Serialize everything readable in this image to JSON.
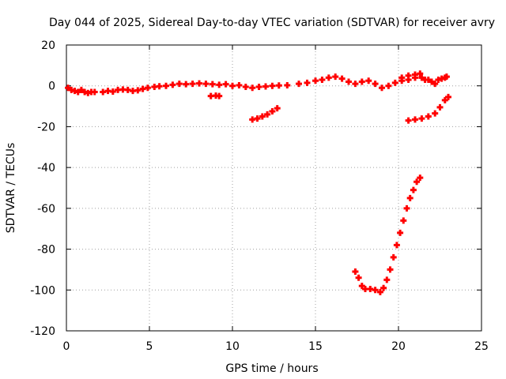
{
  "chart_data": {
    "type": "scatter",
    "title": "Day 044 of 2025, Sidereal Day-to-day VTEC variation (SDTVAR) for receiver avry",
    "xlabel": "GPS time / hours",
    "ylabel": "SDTVAR / TECUs",
    "xlim": [
      0,
      25
    ],
    "ylim": [
      -120,
      20
    ],
    "xticks": [
      "0",
      "5",
      "10",
      "15",
      "20",
      "25"
    ],
    "yticks": [
      "20",
      "0",
      "-20",
      "-40",
      "-60",
      "-80",
      "-100",
      "-120"
    ],
    "grid": true,
    "legend": "none",
    "series": [
      {
        "color": "#ff0000",
        "points": [
          [
            0.1,
            -1
          ],
          [
            0.3,
            -2
          ],
          [
            0.5,
            -2.5
          ],
          [
            0.7,
            -3
          ],
          [
            0.9,
            -2
          ],
          [
            1.1,
            -3
          ],
          [
            1.3,
            -3.5
          ],
          [
            1.5,
            -3
          ],
          [
            1.7,
            -3
          ],
          [
            2.2,
            -3
          ],
          [
            2.5,
            -2.5
          ],
          [
            2.8,
            -2.8
          ],
          [
            3.1,
            -2
          ],
          [
            3.4,
            -1.8
          ],
          [
            3.7,
            -2
          ],
          [
            4.0,
            -2.5
          ],
          [
            4.3,
            -2.2
          ],
          [
            4.6,
            -1.5
          ],
          [
            4.9,
            -1
          ],
          [
            5.3,
            -0.5
          ],
          [
            5.6,
            -0.2
          ],
          [
            6.0,
            0
          ],
          [
            6.4,
            0.5
          ],
          [
            6.8,
            1
          ],
          [
            7.2,
            0.8
          ],
          [
            7.6,
            1
          ],
          [
            8.0,
            1.2
          ],
          [
            8.4,
            1
          ],
          [
            8.8,
            0.8
          ],
          [
            9.2,
            0.5
          ],
          [
            9.6,
            0.8
          ],
          [
            10.0,
            0
          ],
          [
            10.4,
            0.3
          ],
          [
            10.8,
            -0.5
          ],
          [
            11.2,
            -1
          ],
          [
            11.6,
            -0.5
          ],
          [
            12.0,
            -0.3
          ],
          [
            12.4,
            0
          ],
          [
            12.8,
            0.2
          ],
          [
            13.3,
            0.3
          ],
          [
            14.0,
            1
          ],
          [
            14.5,
            1.5
          ],
          [
            15.0,
            2.5
          ],
          [
            15.4,
            3
          ],
          [
            15.8,
            4
          ],
          [
            16.2,
            4.5
          ],
          [
            16.6,
            3.5
          ],
          [
            17.0,
            2
          ],
          [
            17.4,
            1
          ],
          [
            17.8,
            2
          ],
          [
            18.2,
            2.5
          ],
          [
            18.6,
            1
          ],
          [
            19.0,
            -1
          ],
          [
            19.4,
            0
          ],
          [
            19.8,
            1.5
          ],
          [
            20.2,
            2.5
          ],
          [
            20.6,
            3
          ],
          [
            21.0,
            4
          ],
          [
            21.3,
            6
          ],
          [
            21.6,
            3
          ],
          [
            22.0,
            2
          ],
          [
            22.4,
            3
          ],
          [
            22.8,
            4
          ]
        ]
      },
      {
        "color": "#ff0000",
        "points": [
          [
            17.4,
            -91
          ],
          [
            17.6,
            -94
          ],
          [
            17.8,
            -98
          ],
          [
            18.0,
            -99.5
          ],
          [
            18.3,
            -99.5
          ],
          [
            18.6,
            -100
          ],
          [
            18.9,
            -101
          ],
          [
            19.1,
            -99
          ],
          [
            19.3,
            -95
          ],
          [
            19.5,
            -90
          ],
          [
            19.7,
            -84
          ],
          [
            19.9,
            -78
          ],
          [
            20.1,
            -72
          ],
          [
            20.3,
            -66
          ],
          [
            20.5,
            -60
          ],
          [
            20.7,
            -55
          ],
          [
            20.9,
            -51
          ],
          [
            21.1,
            -47
          ],
          [
            21.3,
            -45
          ]
        ]
      },
      {
        "color": "#ff0000",
        "points": [
          [
            11.2,
            -16.5
          ],
          [
            11.5,
            -16
          ],
          [
            11.8,
            -15
          ],
          [
            12.1,
            -14
          ],
          [
            12.4,
            -12.5
          ],
          [
            12.7,
            -11
          ]
        ]
      },
      {
        "color": "#ff0000",
        "points": [
          [
            20.6,
            -17
          ],
          [
            21.0,
            -16.5
          ],
          [
            21.4,
            -16
          ],
          [
            21.8,
            -15
          ],
          [
            22.2,
            -13.5
          ],
          [
            22.5,
            -10.5
          ],
          [
            22.8,
            -7
          ],
          [
            23.0,
            -5.5
          ]
        ]
      },
      {
        "color": "#ff0000",
        "points": [
          [
            8.7,
            -5
          ],
          [
            9.0,
            -4.8
          ],
          [
            9.2,
            -5
          ]
        ]
      },
      {
        "color": "#ff0000",
        "points": [
          [
            20.2,
            4
          ],
          [
            20.6,
            5
          ],
          [
            21.0,
            5.5
          ],
          [
            21.4,
            4
          ],
          [
            21.8,
            3
          ],
          [
            22.2,
            1
          ],
          [
            22.6,
            3.5
          ],
          [
            22.9,
            4.5
          ]
        ]
      }
    ]
  }
}
